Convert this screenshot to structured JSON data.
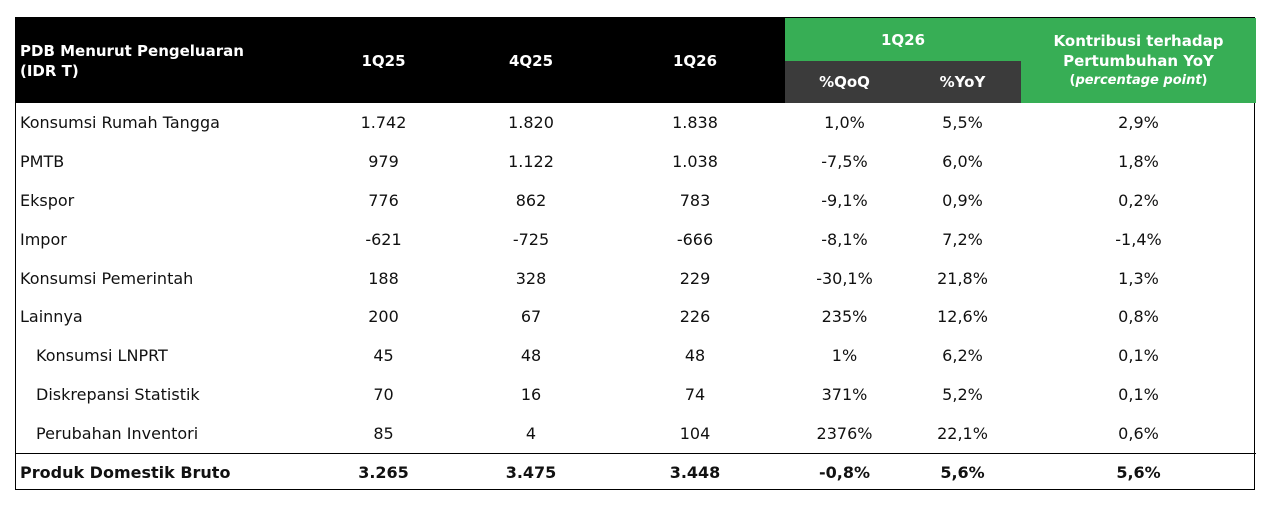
{
  "header": {
    "title_line1": "PDB Menurut Pengeluaran",
    "title_line2": "(IDR T)",
    "col_1q25": "1Q25",
    "col_4q25": "4Q25",
    "col_1q26": "1Q26",
    "group_1q26": "1Q26",
    "sub_qoq": "%QoQ",
    "sub_yoy": "%YoY",
    "kontrib_line1": "Kontribusi terhadap",
    "kontrib_line2": "Pertumbuhan YoY",
    "kontrib_line3_open": "(",
    "kontrib_line3_em": "percentage point",
    "kontrib_line3_close": ")"
  },
  "rows": [
    {
      "label": "Konsumsi Rumah Tangga",
      "q1_25": "1.742",
      "q4_25": "1.820",
      "q1_26": "1.838",
      "qoq": "1,0%",
      "yoy": "5,5%",
      "kontrib": "2,9%"
    },
    {
      "label": "PMTB",
      "q1_25": "979",
      "q4_25": "1.122",
      "q1_26": "1.038",
      "qoq": "-7,5%",
      "yoy": "6,0%",
      "kontrib": "1,8%"
    },
    {
      "label": "Ekspor",
      "q1_25": "776",
      "q4_25": "862",
      "q1_26": "783",
      "qoq": "-9,1%",
      "yoy": "0,9%",
      "kontrib": "0,2%"
    },
    {
      "label": "Impor",
      "q1_25": "-621",
      "q4_25": "-725",
      "q1_26": "-666",
      "qoq": "-8,1%",
      "yoy": "7,2%",
      "kontrib": "-1,4%"
    },
    {
      "label": "Konsumsi Pemerintah",
      "q1_25": "188",
      "q4_25": "328",
      "q1_26": "229",
      "qoq": "-30,1%",
      "yoy": "21,8%",
      "kontrib": "1,3%"
    },
    {
      "label": "Lainnya",
      "q1_25": "200",
      "q4_25": "67",
      "q1_26": "226",
      "qoq": "235%",
      "yoy": "12,6%",
      "kontrib": "0,8%"
    },
    {
      "label": "Konsumsi LNPRT",
      "q1_25": "45",
      "q4_25": "48",
      "q1_26": "48",
      "qoq": "1%",
      "yoy": "6,2%",
      "kontrib": "0,1%"
    },
    {
      "label": "Diskrepansi Statistik",
      "q1_25": "70",
      "q4_25": "16",
      "q1_26": "74",
      "qoq": "371%",
      "yoy": "5,2%",
      "kontrib": "0,1%"
    },
    {
      "label": "Perubahan Inventori",
      "q1_25": "85",
      "q4_25": "4",
      "q1_26": "104",
      "qoq": "2376%",
      "yoy": "22,1%",
      "kontrib": "0,6%"
    }
  ],
  "total": {
    "label": "Produk Domestik Bruto",
    "q1_25": "3.265",
    "q4_25": "3.475",
    "q1_26": "3.448",
    "qoq": "-0,8%",
    "yoy": "5,6%",
    "kontrib": "5,6%"
  },
  "colors": {
    "black": "#000000",
    "green": "#37ae55",
    "dark_gray": "#3b3b3b"
  }
}
